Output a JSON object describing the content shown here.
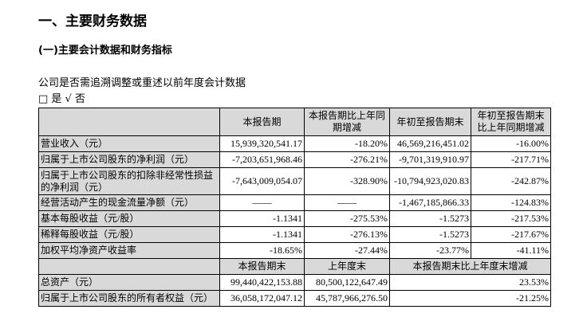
{
  "heading1": "一、主要财务数据",
  "heading2": "(一)主要会计数据和财务指标",
  "question": "公司是否需追溯调整或重述以前年度会计数据",
  "options": "□ 是 √ 否",
  "table1": {
    "headers": [
      "",
      "本报告期",
      "本报告期比上年同期增减",
      "年初至报告期末",
      "年初至报告期末比上年同期增减"
    ],
    "rows": [
      [
        "营业收入（元）",
        "15,939,320,541.17",
        "-18.20%",
        "46,569,216,451.02",
        "-16.00%"
      ],
      [
        "归属于上市公司股东的净利润（元）",
        "-7,203,651,968.46",
        "-276.21%",
        "-9,701,319,910.97",
        "-217.71%"
      ],
      [
        "归属于上市公司股东的扣除非经常性损益的净利润（元）",
        "-7,643,009,054.07",
        "-328.90%",
        "-10,794,923,020.83",
        "-242.87%"
      ],
      [
        "经营活动产生的现金流量净额（元）",
        "——",
        "——",
        "-1,467,185,866.33",
        "-124.83%"
      ],
      [
        "基本每股收益（元/股）",
        "-1.1341",
        "-275.53%",
        "-1.5273",
        "-217.53%"
      ],
      [
        "稀释每股收益（元/股）",
        "-1.1341",
        "-276.13%",
        "-1.5273",
        "-217.67%"
      ],
      [
        "加权平均净资产收益率",
        "-18.65%",
        "-27.44%",
        "-23.77%",
        "-41.11%"
      ]
    ]
  },
  "table2": {
    "headers": [
      "",
      "本报告期末",
      "上年度末",
      "本报告期末比上年度末增减"
    ],
    "rows": [
      [
        "总资产（元）",
        "99,440,422,153.88",
        "80,500,122,647.49",
        "23.53%"
      ],
      [
        "归属于上市公司股东的所有者权益（元）",
        "36,058,172,047.12",
        "45,787,966,276.50",
        "-21.25%"
      ]
    ]
  }
}
